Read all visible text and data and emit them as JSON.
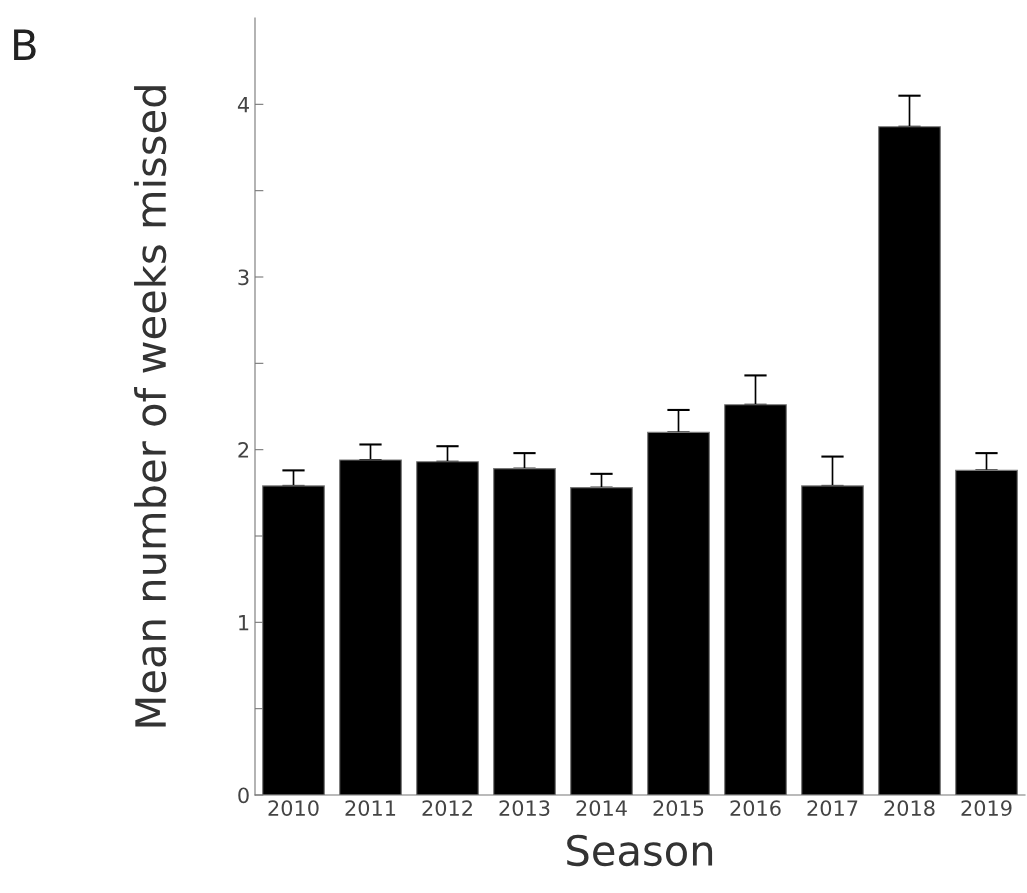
{
  "chart_data": {
    "type": "bar",
    "xlabel": "Season",
    "ylabel": "Mean number of weeks missed",
    "annotations": [
      "B"
    ],
    "categories": [
      "2010",
      "2011",
      "2012",
      "2013",
      "2014",
      "2015",
      "2016",
      "2017",
      "2018",
      "2019"
    ],
    "values": [
      1.79,
      1.94,
      1.93,
      1.89,
      1.78,
      2.1,
      2.26,
      1.79,
      3.87,
      1.88
    ],
    "errors": [
      [
        1.79,
        1.88
      ],
      [
        1.94,
        2.03
      ],
      [
        1.93,
        2.02
      ],
      [
        1.89,
        1.98
      ],
      [
        1.78,
        1.86
      ],
      [
        2.1,
        2.23
      ],
      [
        2.26,
        2.43
      ],
      [
        1.79,
        1.96
      ],
      [
        3.87,
        4.05
      ],
      [
        1.88,
        1.98
      ]
    ],
    "color": "#000000",
    "ylim": [
      0,
      4.5
    ],
    "yticks": [
      0,
      {
        "value": 0.5,
        "label": null
      },
      1,
      {
        "value": 1.5,
        "label": null
      },
      2,
      {
        "value": 2.5,
        "label": null
      },
      3,
      {
        "value": 3.5,
        "label": null
      },
      4
    ],
    "grid": false,
    "legend": false
  }
}
